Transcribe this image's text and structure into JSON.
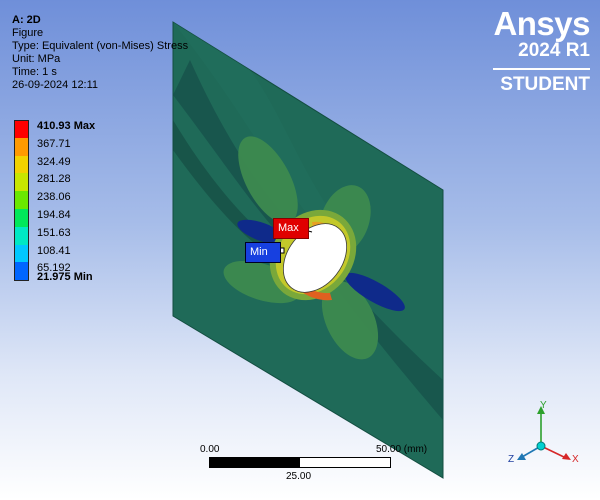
{
  "info": {
    "title": "A: 2D",
    "line1": "Figure",
    "line2": "Type: Equivalent (von-Mises) Stress",
    "line3": "Unit: MPa",
    "line4": "Time: 1 s",
    "line5": "26-09-2024 12:11"
  },
  "legend": {
    "items": [
      {
        "label": "410.93 Max",
        "color": "#ff0000"
      },
      {
        "label": "367.71",
        "color": "#ff9a00"
      },
      {
        "label": "324.49",
        "color": "#f2d200"
      },
      {
        "label": "281.28",
        "color": "#c8e600"
      },
      {
        "label": "238.06",
        "color": "#6ae800"
      },
      {
        "label": "194.84",
        "color": "#00e85a"
      },
      {
        "label": "151.63",
        "color": "#00e8c4"
      },
      {
        "label": "108.41",
        "color": "#00c8ff"
      },
      {
        "label": "65.192",
        "color": "#0066ff"
      }
    ],
    "min_label": "21.975 Min"
  },
  "brand": {
    "logo": "Ansys",
    "version": "2024 R1",
    "edition": "STUDENT"
  },
  "probes": {
    "max": "Max",
    "min": "Min"
  },
  "scale": {
    "start": "0.00",
    "end": "50.00 (mm)",
    "mid": "25.00"
  },
  "triad": {
    "x": "X",
    "y": "Y",
    "z": "Z"
  }
}
